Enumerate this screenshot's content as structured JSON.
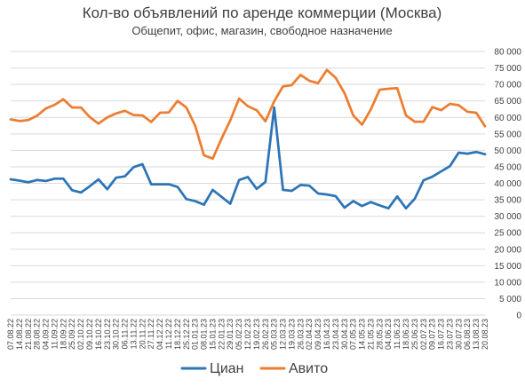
{
  "chart_data": {
    "type": "line",
    "title": "Кол-во объявлений по аренде коммерции (Москва)",
    "subtitle": "Общепит, офис, магазин, свободное назначение",
    "xlabel": "",
    "ylabel": "",
    "ylim": [
      0,
      80000
    ],
    "yticks": [
      0,
      5000,
      10000,
      15000,
      20000,
      25000,
      30000,
      35000,
      40000,
      45000,
      50000,
      55000,
      60000,
      65000,
      70000,
      75000,
      80000
    ],
    "ytick_labels": [
      "0",
      "5 000",
      "10 000",
      "15 000",
      "20 000",
      "25 000",
      "30 000",
      "35 000",
      "40 000",
      "45 000",
      "50 000",
      "55 000",
      "60 000",
      "65 000",
      "70 000",
      "75 000",
      "80 000"
    ],
    "y_axis_position": "right",
    "grid": true,
    "legend_position": "bottom",
    "categories": [
      "07.08.22",
      "14.08.22",
      "21.08.22",
      "28.08.22",
      "04.09.22",
      "11.09.22",
      "18.09.22",
      "25.09.22",
      "02.10.22",
      "09.10.22",
      "16.10.22",
      "23.10.22",
      "30.10.22",
      "06.11.22",
      "13.11.22",
      "20.11.22",
      "27.11.22",
      "04.12.22",
      "11.12.22",
      "18.12.22",
      "25.12.22",
      "01.01.23",
      "08.01.23",
      "15.01.23",
      "22.01.23",
      "29.01.23",
      "05.02.23",
      "12.02.23",
      "19.02.23",
      "26.02.23",
      "05.03.23",
      "12.03.23",
      "19.03.23",
      "26.03.23",
      "02.04.23",
      "09.04.23",
      "16.04.23",
      "23.04.23",
      "30.04.23",
      "07.05.23",
      "14.05.23",
      "21.05.23",
      "28.05.23",
      "04.06.23",
      "11.06.23",
      "18.06.23",
      "25.06.23",
      "02.07.23",
      "09.07.23",
      "16.07.23",
      "23.07.23",
      "30.07.23",
      "06.08.23",
      "13.08.23",
      "20.08.23"
    ],
    "series": [
      {
        "name": "Циан",
        "color": "#2e75b6",
        "values": [
          41200,
          40800,
          40300,
          41000,
          40700,
          41400,
          41400,
          37900,
          37200,
          39100,
          41200,
          38200,
          41700,
          42100,
          44900,
          45800,
          39700,
          39700,
          39700,
          38900,
          35200,
          34600,
          33500,
          38000,
          35900,
          33800,
          41000,
          41900,
          38300,
          40400,
          63000,
          38000,
          37700,
          39500,
          39300,
          36900,
          36600,
          36100,
          32600,
          34600,
          33100,
          34300,
          33300,
          32400,
          36000,
          32400,
          35300,
          40900,
          42000,
          43600,
          45200,
          49300,
          49000,
          49500,
          48800
        ]
      },
      {
        "name": "Авито",
        "color": "#ed7d31",
        "values": [
          59400,
          58900,
          59200,
          60500,
          62700,
          63800,
          65500,
          63000,
          63000,
          60100,
          58100,
          60000,
          61200,
          62000,
          60700,
          60600,
          58600,
          61400,
          61500,
          65000,
          63000,
          57500,
          48500,
          47500,
          53500,
          59100,
          65700,
          63400,
          62200,
          58800,
          64900,
          69400,
          69800,
          72900,
          71100,
          70400,
          74400,
          72000,
          67400,
          60600,
          57800,
          62400,
          68400,
          68700,
          68900,
          60600,
          58700,
          58700,
          63100,
          62200,
          64100,
          63700,
          61700,
          61400,
          57300
        ]
      }
    ]
  }
}
